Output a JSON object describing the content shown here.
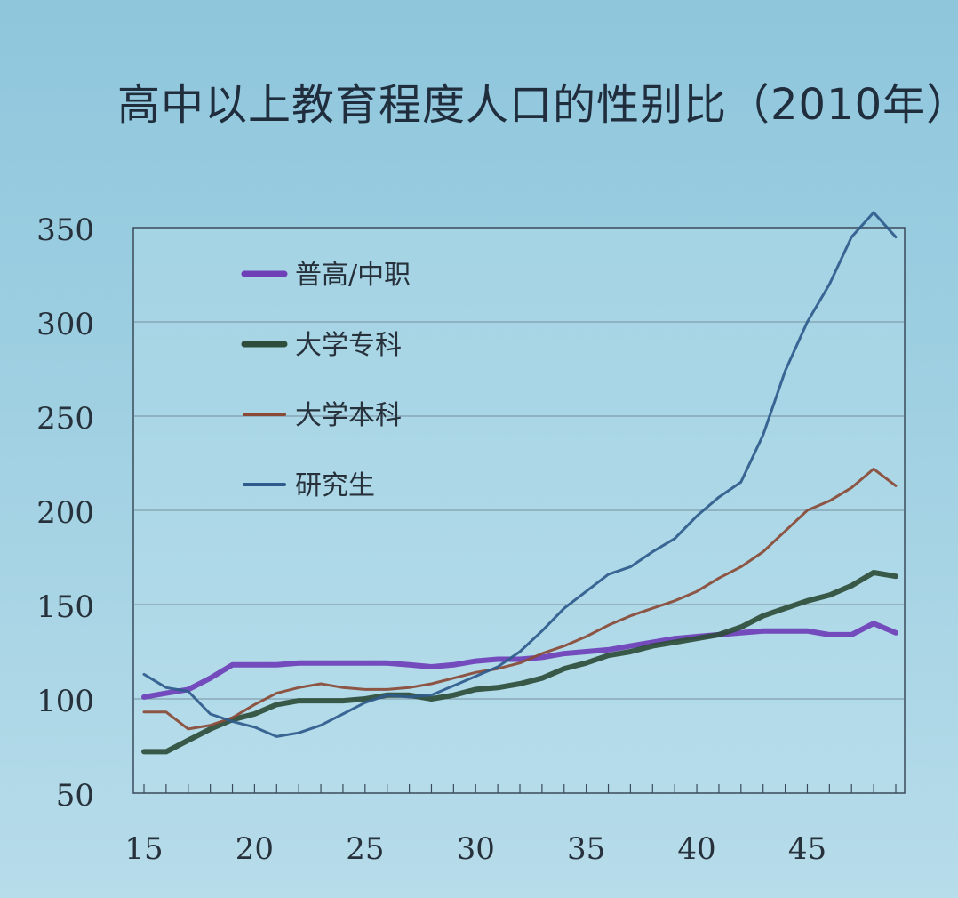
{
  "chart_data": {
    "type": "line",
    "title": "高中以上教育程度人口的性别比（2010年）",
    "xlabel": "",
    "ylabel": "",
    "xlim": [
      15,
      49
    ],
    "ylim": [
      50,
      350
    ],
    "xticks": [
      15,
      20,
      25,
      30,
      35,
      40,
      45
    ],
    "yticks": [
      50,
      100,
      150,
      200,
      250,
      300,
      350
    ],
    "grid": "horizontal",
    "legend_position": "top-left",
    "x": [
      15,
      16,
      17,
      18,
      19,
      20,
      21,
      22,
      23,
      24,
      25,
      26,
      27,
      28,
      29,
      30,
      31,
      32,
      33,
      34,
      35,
      36,
      37,
      38,
      39,
      40,
      41,
      42,
      43,
      44,
      45,
      46,
      47,
      48,
      49
    ],
    "series": [
      {
        "name": "普高/中职",
        "color": "#6e3fb7",
        "width": 6,
        "values": [
          101,
          103,
          105,
          111,
          118,
          118,
          118,
          119,
          119,
          119,
          119,
          119,
          118,
          117,
          118,
          120,
          121,
          121,
          122,
          124,
          125,
          126,
          128,
          130,
          132,
          133,
          134,
          135,
          136,
          136,
          136,
          134,
          134,
          140,
          135
        ]
      },
      {
        "name": "大学专科",
        "color": "#2e4d3a",
        "width": 6,
        "values": [
          72,
          72,
          78,
          84,
          89,
          92,
          97,
          99,
          99,
          99,
          100,
          102,
          102,
          100,
          102,
          105,
          106,
          108,
          111,
          116,
          119,
          123,
          125,
          128,
          130,
          132,
          134,
          138,
          144,
          148,
          152,
          155,
          160,
          167,
          165
        ]
      },
      {
        "name": "大学本科",
        "color": "#8a4a35",
        "width": 3,
        "values": [
          93,
          93,
          84,
          86,
          90,
          97,
          103,
          106,
          108,
          106,
          105,
          105,
          106,
          108,
          111,
          114,
          116,
          119,
          124,
          128,
          133,
          139,
          144,
          148,
          152,
          157,
          164,
          170,
          178,
          189,
          200,
          205,
          212,
          222,
          213
        ]
      },
      {
        "name": "研究生",
        "color": "#2f5b8c",
        "width": 3,
        "values": [
          113,
          106,
          104,
          92,
          88,
          85,
          80,
          82,
          86,
          92,
          98,
          102,
          101,
          102,
          107,
          112,
          117,
          125,
          136,
          148,
          157,
          166,
          170,
          178,
          185,
          197,
          207,
          215,
          240,
          274,
          300,
          320,
          345,
          358,
          345
        ]
      }
    ]
  }
}
